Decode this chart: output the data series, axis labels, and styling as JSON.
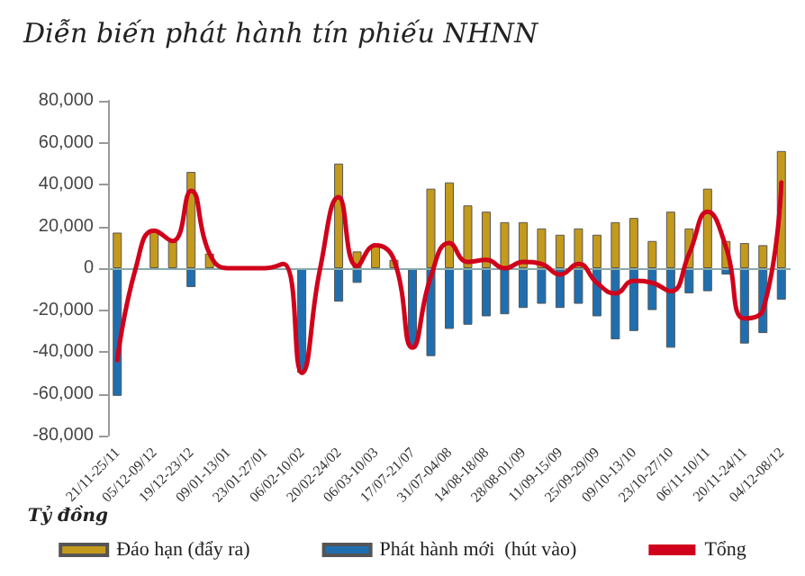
{
  "chart_data": {
    "type": "bar",
    "title": "Diễn biến phát hành tín phiếu NHNN",
    "ylabel": "Tỷ đồng",
    "categories": [
      "21/11-25/11",
      null,
      "05/12-09/12",
      null,
      "19/12-23/12",
      null,
      "09/01-13/01",
      null,
      "23/01-27/01",
      null,
      "06/02-10/02",
      null,
      "20/02-24/02",
      null,
      "06/03-10/03",
      null,
      "17/07-21/07",
      null,
      "31/07-04/08",
      null,
      "14/08-18/08",
      null,
      "28/08-01/09",
      null,
      "11/09-15/09",
      null,
      "25/09-29/09",
      null,
      "09/10-13/10",
      null,
      "23/10-27/10",
      null,
      "06/11-10/11",
      null,
      "20/11-24/11",
      null,
      "04/12-08/12"
    ],
    "stacked": true,
    "legend": "bottom",
    "marker": "none",
    "line_style": "solid",
    "ref_lines": [
      {
        "axis": "y",
        "value": 0,
        "color": "#88aaaa"
      }
    ],
    "ylim": [
      -80000,
      80000
    ],
    "yticks": [
      {
        "value": -80000,
        "label": "-80,000"
      },
      {
        "value": -60000,
        "label": "-60,000"
      },
      {
        "value": -40000,
        "label": "-40,000"
      },
      {
        "value": -20000,
        "label": "-20,000"
      },
      {
        "value": 0,
        "label": "0"
      },
      {
        "value": 20000,
        "label": "20,000"
      },
      {
        "value": 40000,
        "label": "40,000"
      },
      {
        "value": 60000,
        "label": "60,000"
      },
      {
        "value": 80000,
        "label": "80,000"
      }
    ],
    "series": [
      {
        "name": "Đáo hạn (đẩy ra)",
        "color": "#c49a1c",
        "values": [
          17000,
          null,
          18000,
          13000,
          46000,
          7000,
          null,
          null,
          null,
          null,
          null,
          null,
          50000,
          8000,
          11000,
          4000,
          null,
          38000,
          41000,
          30000,
          27000,
          22000,
          22000,
          19000,
          16000,
          19000,
          16000,
          22000,
          24000,
          13000,
          27000,
          19000,
          38000,
          13000,
          12000,
          11000,
          56000
        ]
      },
      {
        "name": "Phát hành mới  (hút vào)",
        "color": "#1f6fb0",
        "values": [
          -61000,
          null,
          null,
          null,
          -9000,
          null,
          null,
          null,
          null,
          null,
          -50000,
          null,
          -16000,
          -7000,
          null,
          null,
          -38000,
          -42000,
          -29000,
          -27000,
          -23000,
          -22000,
          -19000,
          -17000,
          -19000,
          -17000,
          -23000,
          -34000,
          -30000,
          -20000,
          -38000,
          -12000,
          -11000,
          -3000,
          -36000,
          -31000,
          -15000
        ]
      },
      {
        "name": "Tổng",
        "type": "line",
        "color": "#d0021b",
        "values": [
          -44000,
          0,
          18000,
          13000,
          37000,
          7000,
          0,
          0,
          0,
          2000,
          -50000,
          0,
          34000,
          1000,
          11000,
          4000,
          -38000,
          -4000,
          12000,
          3000,
          4000,
          0,
          3000,
          2000,
          -3000,
          2000,
          -7000,
          -12000,
          -6000,
          -7000,
          -11000,
          7000,
          27000,
          10000,
          -24000,
          -20000,
          41000
        ]
      }
    ]
  }
}
